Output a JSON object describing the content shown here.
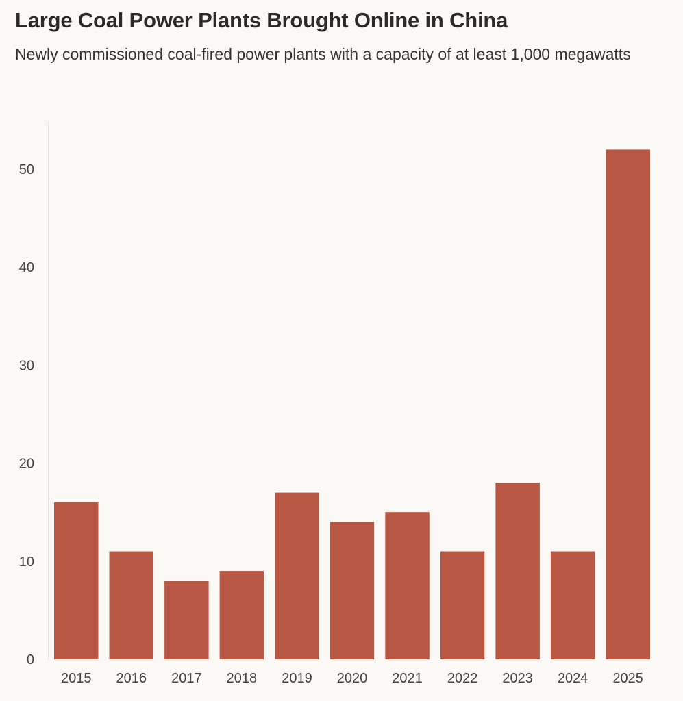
{
  "header": {
    "title": "Large Coal Power Plants Brought Online in China",
    "subtitle": "Newly commissioned coal-fired power plants with a capacity of at least 1,000 megawatts"
  },
  "colors": {
    "bar": "#b85744",
    "axis": "#e4e1da",
    "background": "#faf9f5"
  },
  "chart_data": {
    "type": "bar",
    "title": "Large Coal Power Plants Brought Online in China",
    "subtitle": "Newly commissioned coal-fired power plants with a capacity of at least 1,000 megawatts",
    "xlabel": "",
    "ylabel": "",
    "categories": [
      "2015",
      "2016",
      "2017",
      "2018",
      "2019",
      "2020",
      "2021",
      "2022",
      "2023",
      "2024",
      "2025"
    ],
    "values": [
      16,
      11,
      8,
      9,
      17,
      14,
      15,
      11,
      18,
      11,
      52
    ],
    "ylim": [
      0,
      55
    ],
    "yticks": [
      0,
      10,
      20,
      30,
      40,
      50
    ],
    "grid": false
  }
}
